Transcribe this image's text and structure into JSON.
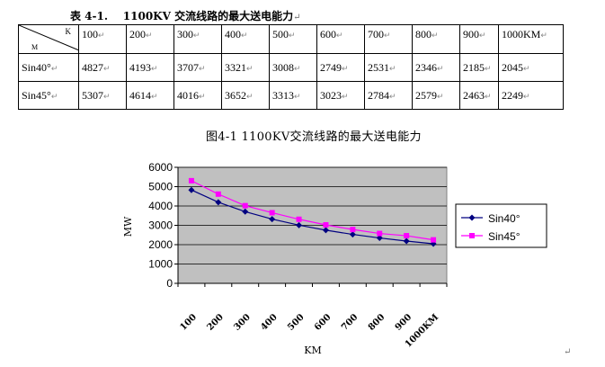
{
  "caption": {
    "label": "表 4-1.",
    "title": "1100KV 交流线路的最大送电能力",
    "mark": "↵"
  },
  "table": {
    "corner_k": "K",
    "corner_m": "M",
    "cell_mark": "↵",
    "columns": [
      "100",
      "200",
      "300",
      "400",
      "500",
      "600",
      "700",
      "800",
      "900",
      "1000KM"
    ],
    "rows": [
      {
        "label": "Sin40°",
        "values": [
          "4827",
          "4193",
          "3707",
          "3321",
          "3008",
          "2749",
          "2531",
          "2346",
          "2185",
          "2045"
        ]
      },
      {
        "label": "Sin45°",
        "values": [
          "5307",
          "4614",
          "4016",
          "3652",
          "3313",
          "3023",
          "2784",
          "2579",
          "2463",
          "2249"
        ]
      }
    ]
  },
  "chart_data": {
    "type": "line",
    "title": "图4-1  1100KV交流线路的最大送电能力",
    "xlabel": "KM",
    "ylabel": "MW",
    "categories": [
      "100",
      "200",
      "300",
      "400",
      "500",
      "600",
      "700",
      "800",
      "900",
      "1000KM"
    ],
    "ylim": [
      0,
      6000
    ],
    "yticks": [
      "0",
      "1000",
      "2000",
      "3000",
      "4000",
      "5000",
      "6000"
    ],
    "grid": true,
    "legend_position": "right",
    "series": [
      {
        "name": "Sin40°",
        "color": "#000080",
        "marker": "diamond",
        "values": [
          4827,
          4193,
          3707,
          3321,
          3008,
          2749,
          2531,
          2346,
          2185,
          2045
        ]
      },
      {
        "name": "Sin45°",
        "color": "#ff00ff",
        "marker": "square",
        "values": [
          5307,
          4614,
          4016,
          3652,
          3313,
          3023,
          2784,
          2579,
          2463,
          2249
        ]
      }
    ]
  },
  "end_mark": "↵"
}
